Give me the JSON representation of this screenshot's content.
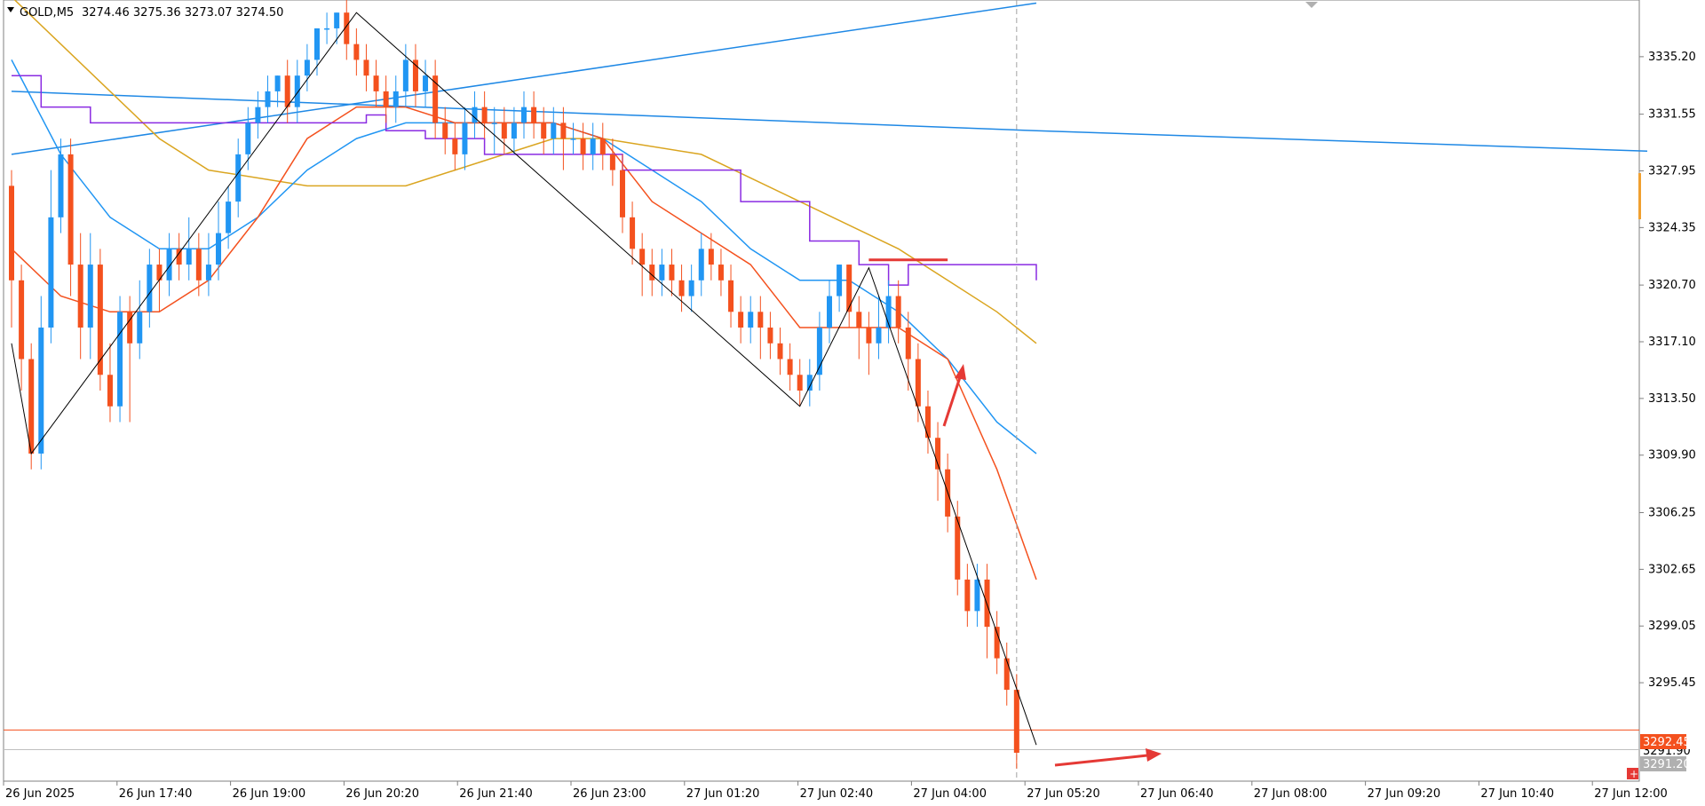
{
  "header": {
    "symbol": "GOLD,M5",
    "ohlc": "3274.46 3275.36 3273.07 3274.50"
  },
  "price_tags": {
    "current": "3292.45",
    "bid": "3291.20",
    "hidden": "3291.90"
  },
  "colors": {
    "bull": "#2196F3",
    "bear": "#F4511E",
    "ema_fast": "#F4511E",
    "ema_mid": "#2196F3",
    "ema_slow": "#DAA520",
    "stepline": "#8A2BE2",
    "trendline": "#1E88E5",
    "price_line": "#F4511E",
    "bid_line": "#C0C0C0",
    "zigzag": "#000000"
  },
  "chart_data": {
    "type": "candlestick",
    "ylim": [
      3289.2,
      3338.8
    ],
    "y_ticks": [
      "3335.20",
      "3331.55",
      "3327.95",
      "3324.35",
      "3320.70",
      "3317.10",
      "3313.50",
      "3309.90",
      "3306.25",
      "3302.65",
      "3299.05",
      "3295.45"
    ],
    "x_ticks": [
      "26 Jun 2025",
      "26 Jun 17:40",
      "26 Jun 19:00",
      "26 Jun 20:20",
      "26 Jun 21:40",
      "26 Jun 23:00",
      "27 Jun 01:20",
      "27 Jun 02:40",
      "27 Jun 04:00",
      "27 Jun 05:20",
      "27 Jun 06:40",
      "27 Jun 08:00",
      "27 Jun 09:20",
      "27 Jun 10:40",
      "27 Jun 12:00"
    ],
    "bar_count": 166,
    "candles": [
      [
        3327,
        3321,
        3328,
        3318
      ],
      [
        3321,
        3316,
        3322,
        3314
      ],
      [
        3316,
        3310,
        3317,
        3309
      ],
      [
        3310,
        3318,
        3320,
        3309
      ],
      [
        3318,
        3325,
        3328,
        3317
      ],
      [
        3325,
        3329,
        3330,
        3324
      ],
      [
        3329,
        3322,
        3330,
        3320
      ],
      [
        3322,
        3318,
        3324,
        3316
      ],
      [
        3318,
        3322,
        3324,
        3316
      ],
      [
        3322,
        3315,
        3323,
        3314
      ],
      [
        3315,
        3313,
        3317,
        3312
      ],
      [
        3313,
        3319,
        3320,
        3312
      ],
      [
        3319,
        3317,
        3320,
        3312
      ],
      [
        3317,
        3319,
        3321,
        3316
      ],
      [
        3319,
        3322,
        3323,
        3318
      ],
      [
        3322,
        3321,
        3323,
        3319
      ],
      [
        3321,
        3323,
        3324,
        3320
      ],
      [
        3323,
        3322,
        3324,
        3321
      ],
      [
        3322,
        3323,
        3325,
        3321
      ],
      [
        3323,
        3321,
        3324,
        3320
      ],
      [
        3321,
        3322,
        3324,
        3320
      ],
      [
        3322,
        3324,
        3326,
        3321
      ],
      [
        3324,
        3326,
        3327,
        3323
      ],
      [
        3326,
        3329,
        3330,
        3325
      ],
      [
        3329,
        3331,
        3332,
        3328
      ],
      [
        3331,
        3332,
        3333,
        3330
      ],
      [
        3332,
        3333,
        3334,
        3331
      ],
      [
        3333,
        3334,
        3334,
        3332
      ],
      [
        3334,
        3332,
        3335,
        3331
      ],
      [
        3332,
        3334,
        3335,
        3331
      ],
      [
        3334,
        3335,
        3336,
        3333
      ],
      [
        3335,
        3337,
        3337,
        3334
      ],
      [
        3337,
        3337,
        3338,
        3336
      ],
      [
        3337,
        3338,
        3338,
        3336
      ],
      [
        3338,
        3336,
        3339,
        3335
      ],
      [
        3336,
        3335,
        3337,
        3334
      ],
      [
        3335,
        3334,
        3336,
        3333
      ],
      [
        3334,
        3333,
        3335,
        3332
      ],
      [
        3333,
        3332,
        3334,
        3331
      ],
      [
        3332,
        3333,
        3334,
        3331
      ],
      [
        3333,
        3335,
        3336,
        3332
      ],
      [
        3335,
        3333,
        3336,
        3332
      ],
      [
        3333,
        3334,
        3335,
        3332
      ],
      [
        3334,
        3331,
        3335,
        3330
      ],
      [
        3331,
        3330,
        3332,
        3329
      ],
      [
        3330,
        3329,
        3331,
        3328
      ],
      [
        3329,
        3331,
        3332,
        3328
      ],
      [
        3331,
        3332,
        3333,
        3330
      ],
      [
        3332,
        3331,
        3333,
        3330
      ],
      [
        3331,
        3331,
        3332,
        3329
      ],
      [
        3331,
        3330,
        3332,
        3329
      ],
      [
        3330,
        3331,
        3332,
        3329
      ],
      [
        3331,
        3332,
        3333,
        3330
      ],
      [
        3332,
        3331,
        3333,
        3330
      ],
      [
        3331,
        3330,
        3332,
        3329
      ],
      [
        3330,
        3331,
        3332,
        3329
      ],
      [
        3331,
        3330,
        3332,
        3328
      ],
      [
        3330,
        3330,
        3331,
        3329
      ],
      [
        3330,
        3329,
        3331,
        3328
      ],
      [
        3329,
        3330,
        3331,
        3328
      ],
      [
        3330,
        3329,
        3331,
        3328
      ],
      [
        3329,
        3328,
        3330,
        3327
      ],
      [
        3328,
        3325,
        3329,
        3324
      ],
      [
        3325,
        3323,
        3326,
        3322
      ],
      [
        3323,
        3322,
        3324,
        3320
      ],
      [
        3322,
        3321,
        3323,
        3320
      ],
      [
        3321,
        3322,
        3323,
        3320
      ],
      [
        3322,
        3321,
        3323,
        3320
      ],
      [
        3321,
        3320,
        3322,
        3319
      ],
      [
        3320,
        3321,
        3322,
        3319
      ],
      [
        3321,
        3323,
        3324,
        3320
      ],
      [
        3323,
        3322,
        3324,
        3321
      ],
      [
        3322,
        3321,
        3323,
        3320
      ],
      [
        3321,
        3319,
        3322,
        3318
      ],
      [
        3319,
        3318,
        3320,
        3317
      ],
      [
        3318,
        3319,
        3320,
        3317
      ],
      [
        3319,
        3318,
        3320,
        3316
      ],
      [
        3318,
        3317,
        3319,
        3316
      ],
      [
        3317,
        3316,
        3318,
        3315
      ],
      [
        3316,
        3315,
        3317,
        3314
      ],
      [
        3315,
        3314,
        3316,
        3313
      ],
      [
        3314,
        3315,
        3316,
        3313
      ],
      [
        3315,
        3318,
        3319,
        3314
      ],
      [
        3318,
        3320,
        3321,
        3317
      ],
      [
        3320,
        3322,
        3322,
        3319
      ],
      [
        3322,
        3319,
        3322,
        3318
      ],
      [
        3319,
        3318,
        3320,
        3316
      ],
      [
        3318,
        3317,
        3319,
        3315
      ],
      [
        3317,
        3318,
        3320,
        3316
      ],
      [
        3318,
        3320,
        3321,
        3317
      ],
      [
        3320,
        3318,
        3321,
        3317
      ],
      [
        3318,
        3316,
        3319,
        3314
      ],
      [
        3316,
        3313,
        3317,
        3312
      ],
      [
        3313,
        3311,
        3314,
        3310
      ],
      [
        3311,
        3309,
        3312,
        3307
      ],
      [
        3309,
        3306,
        3310,
        3305
      ],
      [
        3306,
        3302,
        3307,
        3301
      ],
      [
        3302,
        3300,
        3303,
        3299
      ],
      [
        3300,
        3302,
        3303,
        3299
      ],
      [
        3302,
        3299,
        3303,
        3297
      ],
      [
        3299,
        3297,
        3300,
        3296
      ],
      [
        3297,
        3295,
        3298,
        3294
      ],
      [
        3295,
        3291,
        3296,
        3290
      ]
    ],
    "indicators": {
      "ema_fast": [
        [
          0,
          3323
        ],
        [
          5,
          3320
        ],
        [
          10,
          3319
        ],
        [
          15,
          3319
        ],
        [
          20,
          3321
        ],
        [
          25,
          3325
        ],
        [
          30,
          3330
        ],
        [
          35,
          3332
        ],
        [
          40,
          3332
        ],
        [
          45,
          3331
        ],
        [
          50,
          3331
        ],
        [
          55,
          3331
        ],
        [
          60,
          3330
        ],
        [
          65,
          3326
        ],
        [
          70,
          3324
        ],
        [
          75,
          3322
        ],
        [
          80,
          3318
        ],
        [
          85,
          3318
        ],
        [
          90,
          3318
        ],
        [
          95,
          3316
        ],
        [
          100,
          3309
        ],
        [
          104,
          3302
        ]
      ],
      "ema_mid": [
        [
          0,
          3335
        ],
        [
          5,
          3329
        ],
        [
          10,
          3325
        ],
        [
          15,
          3323
        ],
        [
          20,
          3323
        ],
        [
          25,
          3325
        ],
        [
          30,
          3328
        ],
        [
          35,
          3330
        ],
        [
          40,
          3331
        ],
        [
          45,
          3331
        ],
        [
          50,
          3331
        ],
        [
          55,
          3331
        ],
        [
          60,
          3330
        ],
        [
          65,
          3328
        ],
        [
          70,
          3326
        ],
        [
          75,
          3323
        ],
        [
          80,
          3321
        ],
        [
          85,
          3321
        ],
        [
          90,
          3319
        ],
        [
          95,
          3316
        ],
        [
          100,
          3312
        ],
        [
          104,
          3310
        ]
      ],
      "ema_slow": [
        [
          0,
          3339
        ],
        [
          10,
          3333
        ],
        [
          15,
          3330
        ],
        [
          20,
          3328
        ],
        [
          30,
          3327
        ],
        [
          40,
          3327
        ],
        [
          50,
          3329
        ],
        [
          55,
          3330
        ],
        [
          60,
          3330
        ],
        [
          70,
          3329
        ],
        [
          80,
          3326
        ],
        [
          90,
          3323
        ],
        [
          95,
          3321
        ],
        [
          100,
          3319
        ],
        [
          104,
          3317
        ]
      ],
      "stepline": [
        [
          0,
          3334
        ],
        [
          3,
          3334
        ],
        [
          3,
          3332
        ],
        [
          8,
          3332
        ],
        [
          8,
          3331
        ],
        [
          36,
          3331
        ],
        [
          36,
          3331.5
        ],
        [
          38,
          3331.5
        ],
        [
          38,
          3330.5
        ],
        [
          42,
          3330.5
        ],
        [
          42,
          3330
        ],
        [
          48,
          3330
        ],
        [
          48,
          3329
        ],
        [
          62,
          3329
        ],
        [
          62,
          3328
        ],
        [
          74,
          3328
        ],
        [
          74,
          3326
        ],
        [
          81,
          3326
        ],
        [
          81,
          3323.5
        ],
        [
          86,
          3323.5
        ],
        [
          86,
          3322
        ],
        [
          89,
          3322
        ],
        [
          89,
          3320.7
        ],
        [
          91,
          3320.7
        ],
        [
          91,
          3322
        ],
        [
          98,
          3322
        ],
        [
          104,
          3322
        ],
        [
          104,
          3321
        ]
      ],
      "trendline_up": [
        [
          0,
          3329
        ],
        [
          104,
          3338.6
        ]
      ],
      "trendline_down": [
        [
          0,
          3333
        ],
        [
          104,
          3330.5
        ],
        [
          166,
          3329.2
        ]
      ],
      "zigzag": [
        [
          0,
          3317
        ],
        [
          2,
          3310
        ],
        [
          35,
          3338
        ],
        [
          80,
          3313
        ],
        [
          87,
          3321.8
        ],
        [
          104,
          3291.5
        ]
      ],
      "resistance_line": {
        "from": 87,
        "to": 95,
        "price": 3322.3
      }
    }
  }
}
